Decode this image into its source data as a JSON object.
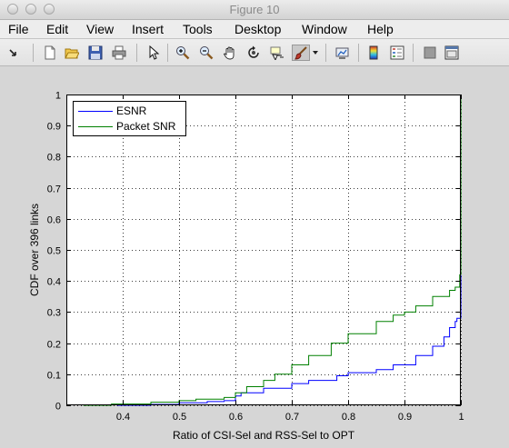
{
  "window": {
    "title": "Figure 10"
  },
  "menu": [
    "File",
    "Edit",
    "View",
    "Insert",
    "Tools",
    "Desktop",
    "Window",
    "Help"
  ],
  "toolbar_icons": [
    "dock-arrow-icon",
    "new-figure-icon",
    "open-file-icon",
    "save-icon",
    "print-icon",
    "edit-plot-arrow-icon",
    "zoom-in-icon",
    "zoom-out-icon",
    "pan-hand-icon",
    "rotate-3d-icon",
    "data-cursor-icon",
    "brush-icon",
    "brush-dropdown-icon",
    "link-plot-icon",
    "colorbar-icon",
    "legend-icon",
    "hide-plot-tools-icon",
    "show-plot-tools-icon"
  ],
  "colors": {
    "esnr": "#0000ff",
    "packet_snr": "#008000"
  },
  "chart_data": {
    "type": "line",
    "xlabel": "Ratio of CSI-Sel and RSS-Sel to OPT",
    "ylabel": "CDF over 396 links",
    "xlim": [
      0.3,
      1.0
    ],
    "ylim": [
      0,
      1
    ],
    "xticks": [
      "0.4",
      "0.5",
      "0.6",
      "0.7",
      "0.8",
      "0.9",
      "1"
    ],
    "yticks": [
      "0",
      "0.1",
      "0.2",
      "0.3",
      "0.4",
      "0.5",
      "0.6",
      "0.7",
      "0.8",
      "0.9",
      "1"
    ],
    "grid": true,
    "legend_position": "top-left",
    "series": [
      {
        "name": "ESNR",
        "x": [
          0.39,
          0.45,
          0.5,
          0.55,
          0.58,
          0.6,
          0.61,
          0.65,
          0.7,
          0.73,
          0.78,
          0.8,
          0.85,
          0.88,
          0.92,
          0.95,
          0.97,
          0.98,
          0.99,
          0.993,
          1.0,
          1.0,
          1.0
        ],
        "y": [
          0,
          0.003,
          0.008,
          0.012,
          0.015,
          0.03,
          0.04,
          0.055,
          0.07,
          0.08,
          0.095,
          0.105,
          0.115,
          0.13,
          0.16,
          0.19,
          0.22,
          0.25,
          0.27,
          0.28,
          0.33,
          0.44,
          1.0
        ]
      },
      {
        "name": "Packet SNR",
        "x": [
          0.33,
          0.38,
          0.45,
          0.5,
          0.53,
          0.58,
          0.6,
          0.62,
          0.65,
          0.67,
          0.7,
          0.73,
          0.77,
          0.8,
          0.85,
          0.88,
          0.9,
          0.92,
          0.95,
          0.98,
          0.99,
          0.998,
          1.0,
          1.0
        ],
        "y": [
          0,
          0.004,
          0.01,
          0.015,
          0.02,
          0.025,
          0.04,
          0.06,
          0.08,
          0.1,
          0.13,
          0.16,
          0.2,
          0.23,
          0.27,
          0.29,
          0.3,
          0.32,
          0.35,
          0.37,
          0.38,
          0.42,
          0.44,
          1.0
        ]
      }
    ]
  }
}
